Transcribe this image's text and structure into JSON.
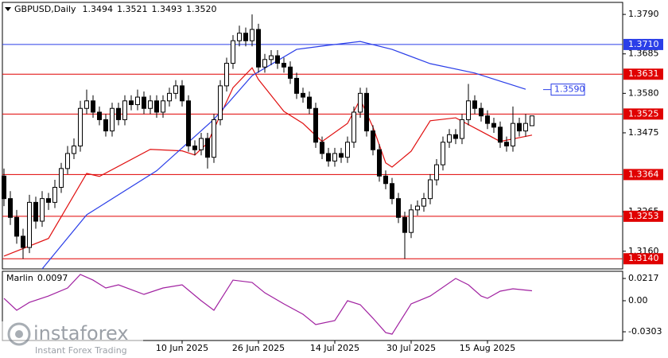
{
  "chart_data": {
    "type": "candlestick",
    "title": "GBPUSD,Daily",
    "ohlc_labels": [
      "1.3494",
      "1.3521",
      "1.3493",
      "1.3520"
    ],
    "open": [
      1.336,
      1.33,
      1.325,
      1.32,
      1.317,
      1.329,
      1.324,
      1.33,
      1.329,
      1.333,
      1.338,
      1.342,
      1.344,
      1.354,
      1.356,
      1.353,
      1.351,
      1.348,
      1.354,
      1.351,
      1.356,
      1.355,
      1.357,
      1.354,
      1.356,
      1.353,
      1.356,
      1.358,
      1.36,
      1.356,
      1.344,
      1.343,
      1.346,
      1.341,
      1.351,
      1.36,
      1.366,
      1.372,
      1.374,
      1.372,
      1.375,
      1.365,
      1.367,
      1.368,
      1.366,
      1.365,
      1.362,
      1.358,
      1.357,
      1.354,
      1.345,
      1.342,
      1.34,
      1.342,
      1.341,
      1.345,
      1.353,
      1.358,
      1.348,
      1.343,
      1.336,
      1.334,
      1.33,
      1.325,
      1.321,
      1.327,
      1.328,
      1.33,
      1.335,
      1.339,
      1.345,
      1.347,
      1.346,
      1.351,
      1.356,
      1.354,
      1.352,
      1.35,
      1.349,
      1.345,
      1.344,
      1.35,
      1.348,
      1.3494
    ],
    "high": [
      1.338,
      1.332,
      1.327,
      1.322,
      1.331,
      1.3305,
      1.332,
      1.3315,
      1.335,
      1.3395,
      1.344,
      1.346,
      1.356,
      1.359,
      1.3575,
      1.3545,
      1.3525,
      1.3555,
      1.3555,
      1.3575,
      1.3575,
      1.359,
      1.3585,
      1.3575,
      1.3575,
      1.3575,
      1.3595,
      1.3615,
      1.3615,
      1.3575,
      1.3455,
      1.3475,
      1.3475,
      1.3525,
      1.3615,
      1.3675,
      1.3735,
      1.376,
      1.3755,
      1.379,
      1.3765,
      1.3685,
      1.3695,
      1.3695,
      1.3675,
      1.3665,
      1.3635,
      1.3595,
      1.3585,
      1.3555,
      1.3465,
      1.3435,
      1.3435,
      1.3435,
      1.3465,
      1.3545,
      1.3595,
      1.3595,
      1.3495,
      1.3445,
      1.3375,
      1.3355,
      1.3315,
      1.3265,
      1.3285,
      1.3295,
      1.3315,
      1.3365,
      1.3405,
      1.3465,
      1.3485,
      1.3485,
      1.3525,
      1.3605,
      1.3575,
      1.3555,
      1.3535,
      1.3515,
      1.3505,
      1.3465,
      1.3545,
      1.3515,
      1.3525,
      1.3521
    ],
    "low": [
      1.328,
      1.323,
      1.318,
      1.314,
      1.3155,
      1.322,
      1.3225,
      1.327,
      1.3275,
      1.3315,
      1.3365,
      1.3405,
      1.3425,
      1.3525,
      1.3515,
      1.3495,
      1.3465,
      1.3465,
      1.3495,
      1.3495,
      1.3535,
      1.3535,
      1.3525,
      1.3525,
      1.3515,
      1.3515,
      1.3545,
      1.3565,
      1.3545,
      1.3425,
      1.3415,
      1.3415,
      1.338,
      1.3395,
      1.3495,
      1.3585,
      1.3645,
      1.3705,
      1.3705,
      1.3705,
      1.3635,
      1.3635,
      1.3655,
      1.3645,
      1.3635,
      1.3605,
      1.3565,
      1.3555,
      1.3525,
      1.3435,
      1.3405,
      1.3385,
      1.3385,
      1.3395,
      1.3395,
      1.3435,
      1.3515,
      1.3465,
      1.3415,
      1.3345,
      1.3325,
      1.3285,
      1.3235,
      1.314,
      1.3195,
      1.3255,
      1.3265,
      1.3285,
      1.3335,
      1.3375,
      1.3435,
      1.3445,
      1.3445,
      1.3495,
      1.3525,
      1.3505,
      1.3485,
      1.3475,
      1.3435,
      1.3425,
      1.3425,
      1.3465,
      1.3465,
      1.3493
    ],
    "close": [
      1.33,
      1.325,
      1.32,
      1.317,
      1.329,
      1.324,
      1.33,
      1.329,
      1.333,
      1.338,
      1.342,
      1.344,
      1.354,
      1.356,
      1.353,
      1.351,
      1.348,
      1.354,
      1.351,
      1.356,
      1.355,
      1.357,
      1.354,
      1.356,
      1.353,
      1.356,
      1.358,
      1.36,
      1.356,
      1.344,
      1.343,
      1.346,
      1.341,
      1.351,
      1.36,
      1.366,
      1.372,
      1.374,
      1.372,
      1.375,
      1.365,
      1.367,
      1.368,
      1.366,
      1.365,
      1.362,
      1.358,
      1.357,
      1.354,
      1.345,
      1.342,
      1.34,
      1.342,
      1.341,
      1.345,
      1.353,
      1.358,
      1.348,
      1.343,
      1.336,
      1.334,
      1.33,
      1.325,
      1.321,
      1.327,
      1.328,
      1.33,
      1.335,
      1.339,
      1.345,
      1.347,
      1.346,
      1.351,
      1.356,
      1.354,
      1.352,
      1.35,
      1.349,
      1.345,
      1.344,
      1.35,
      1.348,
      1.35,
      1.352
    ],
    "ylim": [
      1.3113,
      1.3822
    ],
    "yticks": [
      {
        "value": 1.379,
        "label": "1.3790"
      },
      {
        "value": 1.3685,
        "label": "1.3685"
      },
      {
        "value": 1.358,
        "label": "1.3580"
      },
      {
        "value": 1.3475,
        "label": "1.3475"
      },
      {
        "value": 1.3265,
        "label": "1.3265"
      },
      {
        "value": 1.316,
        "label": "1.3160"
      }
    ],
    "xticks": [
      {
        "value": 28,
        "label": "10 Jun 2025"
      },
      {
        "value": 40,
        "label": "26 Jun 2025"
      },
      {
        "value": 52,
        "label": "14 Jul 2025"
      },
      {
        "value": 64,
        "label": "30 Jul 2025"
      },
      {
        "value": 76,
        "label": "15 Aug 2025"
      }
    ],
    "levels": [
      {
        "value": 1.371,
        "label": "1.3710",
        "color": "#2a3ee8"
      },
      {
        "value": 1.3631,
        "label": "1.3631",
        "color": "#e00000"
      },
      {
        "value": 1.3525,
        "label": "1.3525",
        "color": "#e00000"
      },
      {
        "value": 1.3364,
        "label": "1.3364",
        "color": "#e00000"
      },
      {
        "value": 1.3253,
        "label": "1.3253",
        "color": "#e00000"
      },
      {
        "value": 1.314,
        "label": "1.3140",
        "color": "#e00000"
      }
    ],
    "lines": [
      {
        "color": "#e01010",
        "x": [
          0,
          7,
          13,
          15,
          23,
          28,
          30,
          32,
          36,
          39,
          40,
          44,
          47,
          50,
          54,
          56,
          58,
          60,
          61,
          64,
          67,
          71,
          75,
          78,
          83
        ],
        "values": [
          1.3147,
          1.3194,
          1.3367,
          1.3359,
          1.3431,
          1.3427,
          1.3416,
          1.3448,
          1.3595,
          1.3648,
          1.3617,
          1.3532,
          1.35,
          1.3452,
          1.35,
          1.3564,
          1.349,
          1.3395,
          1.3384,
          1.3426,
          1.3507,
          1.3515,
          1.3479,
          1.3452,
          1.3469
        ]
      },
      {
        "color": "#2a3ee8",
        "x": [
          6,
          13,
          24,
          33,
          39,
          46,
          51,
          56,
          61,
          67,
          74,
          82
        ],
        "values": [
          1.3113,
          1.3257,
          1.3374,
          1.3511,
          1.3627,
          1.3697,
          1.3708,
          1.3718,
          1.3697,
          1.3659,
          1.3634,
          1.3591
        ]
      }
    ],
    "ma_label": {
      "value": 1.359,
      "label": "1.3590",
      "color": "#2a3ee8"
    },
    "indicator": {
      "name": "Marlin",
      "color": "#a020a0",
      "x": [
        0,
        2,
        4,
        7,
        10,
        12,
        14,
        16,
        18,
        22,
        25,
        28,
        31,
        33,
        36,
        39,
        41,
        44,
        47,
        49,
        52,
        54,
        56,
        58,
        60,
        61,
        64,
        67,
        71,
        73,
        75,
        76,
        78,
        80,
        83
      ],
      "values": [
        0.0023,
        -0.0093,
        -0.0016,
        0.0046,
        0.0124,
        0.0256,
        0.0201,
        0.0124,
        0.0155,
        0.0062,
        0.0124,
        0.0155,
        0.0,
        -0.0093,
        0.0201,
        0.0178,
        0.0077,
        -0.0031,
        -0.0132,
        -0.0233,
        -0.0194,
        0.0,
        -0.0039,
        -0.0171,
        -0.0311,
        -0.0326,
        -0.0031,
        0.0046,
        0.0217,
        0.0155,
        0.0046,
        0.0023,
        0.0093,
        0.0116,
        0.0097
      ],
      "ylim": [
        -0.0388,
        0.0287
      ],
      "yticks": [
        0.0217,
        {
          "value": 0,
          "label": "0.00"
        },
        -0.0303
      ]
    },
    "watermark": {
      "brand": "instaforex",
      "tagline": "Instant Forex Trading"
    }
  }
}
